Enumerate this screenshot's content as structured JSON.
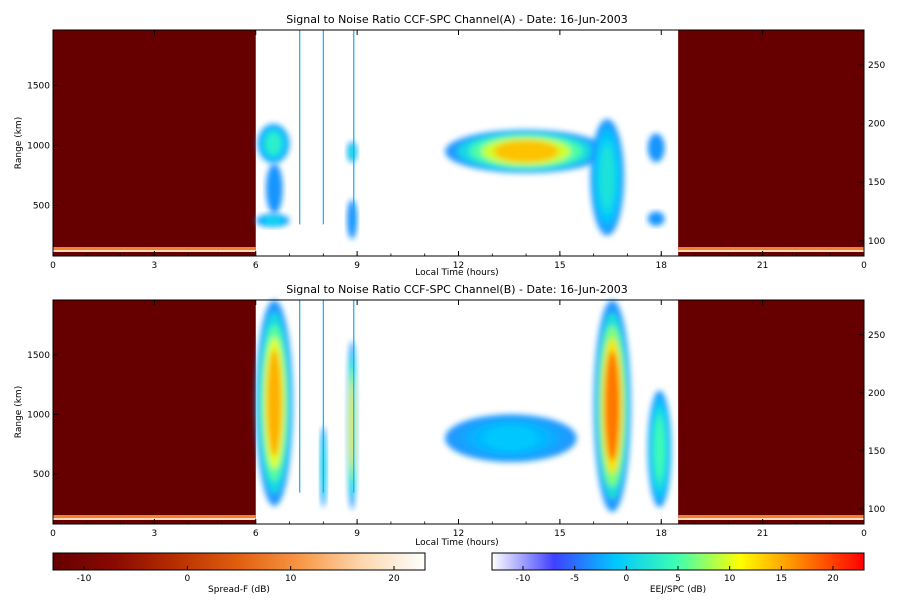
{
  "chart_data": [
    {
      "type": "heatmap",
      "title": "Signal to Noise Ratio CCF-SPC Channel(A) - Date: 16-Jun-2003",
      "xlabel": "Local Time (hours)",
      "ylabel": "Range (km)",
      "xlim": [
        0,
        24
      ],
      "ylim": [
        80,
        1960
      ],
      "y2lim": [
        87,
        280
      ],
      "x_ticks": [
        "0",
        "3",
        "6",
        "9",
        "12",
        "15",
        "18",
        "21",
        "0"
      ],
      "y_ticks": [
        500,
        1000,
        1500
      ],
      "y2_ticks": [
        100,
        150,
        200,
        250
      ],
      "background_blocks": [
        {
          "colormap": "spread-f",
          "x": [
            0,
            6
          ]
        },
        {
          "colormap": "spread-f",
          "x": [
            18.5,
            24
          ]
        }
      ],
      "features": [
        {
          "x": [
            6.05,
            7.0
          ],
          "y": [
            850,
            1180
          ],
          "level": 0.35
        },
        {
          "x": [
            6.0,
            7.0
          ],
          "y": [
            320,
            430
          ],
          "level": 0.25
        },
        {
          "x": [
            6.3,
            6.8
          ],
          "y": [
            430,
            850
          ],
          "level": 0.05
        },
        {
          "x": [
            8.7,
            9.0
          ],
          "y": [
            860,
            1030
          ],
          "level": 0.3
        },
        {
          "x": [
            8.7,
            9.0
          ],
          "y": [
            220,
            550
          ],
          "level": 0.05
        },
        {
          "x": [
            11.6,
            16.4
          ],
          "y": [
            770,
            1130
          ],
          "level": 0.72
        },
        {
          "x": [
            15.9,
            16.9
          ],
          "y": [
            250,
            1220
          ],
          "level": 0.3
        },
        {
          "x": [
            17.6,
            18.1
          ],
          "y": [
            860,
            1100
          ],
          "level": 0.1
        },
        {
          "x": [
            17.6,
            18.1
          ],
          "y": [
            330,
            450
          ],
          "level": 0.05
        }
      ],
      "vertical_lines": [
        7.3,
        8.0,
        8.9
      ]
    },
    {
      "type": "heatmap",
      "title": "Signal to Noise Ratio CCF-SPC Channel(B) - Date: 16-Jun-2003",
      "xlabel": "Local Time (hours)",
      "ylabel": "Range (km)",
      "xlim": [
        0,
        24
      ],
      "ylim": [
        80,
        1960
      ],
      "y2lim": [
        87,
        280
      ],
      "x_ticks": [
        "0",
        "3",
        "6",
        "9",
        "12",
        "15",
        "18",
        "21",
        "0"
      ],
      "y_ticks": [
        500,
        1000,
        1500
      ],
      "y2_ticks": [
        100,
        150,
        200,
        250
      ],
      "background_blocks": [
        {
          "colormap": "spread-f",
          "x": [
            0,
            6
          ]
        },
        {
          "colormap": "spread-f",
          "x": [
            18.5,
            24
          ]
        }
      ],
      "features": [
        {
          "x": [
            6.0,
            7.1
          ],
          "y": [
            230,
            1960
          ],
          "level": 0.75
        },
        {
          "x": [
            8.7,
            9.0
          ],
          "y": [
            200,
            1620
          ],
          "level": 0.65
        },
        {
          "x": [
            7.9,
            8.1
          ],
          "y": [
            220,
            900
          ],
          "level": 0.3
        },
        {
          "x": [
            11.6,
            15.5
          ],
          "y": [
            600,
            1000
          ],
          "level": 0.2
        },
        {
          "x": [
            16.0,
            17.1
          ],
          "y": [
            180,
            1960
          ],
          "level": 0.85
        },
        {
          "x": [
            17.6,
            18.3
          ],
          "y": [
            220,
            1200
          ],
          "level": 0.4
        }
      ],
      "vertical_lines": [
        7.3,
        8.0,
        8.9
      ]
    }
  ],
  "colorbars": [
    {
      "label": "Spread-F (dB)",
      "ticks": [
        -10,
        0,
        10,
        20
      ],
      "range": [
        -13,
        23
      ],
      "colors": [
        "#660000",
        "#8a0a00",
        "#b83000",
        "#e06010",
        "#f89848",
        "#fcd8b0",
        "#ffffff"
      ]
    },
    {
      "label": "EEJ/SPC (dB)",
      "ticks": [
        -10,
        -5,
        0,
        5,
        10,
        15,
        20
      ],
      "range": [
        -13,
        23
      ],
      "colors": [
        "#ffffff",
        "#4040ff",
        "#00c8ff",
        "#40ffb0",
        "#ffff00",
        "#ff8000",
        "#ff0000"
      ]
    }
  ]
}
